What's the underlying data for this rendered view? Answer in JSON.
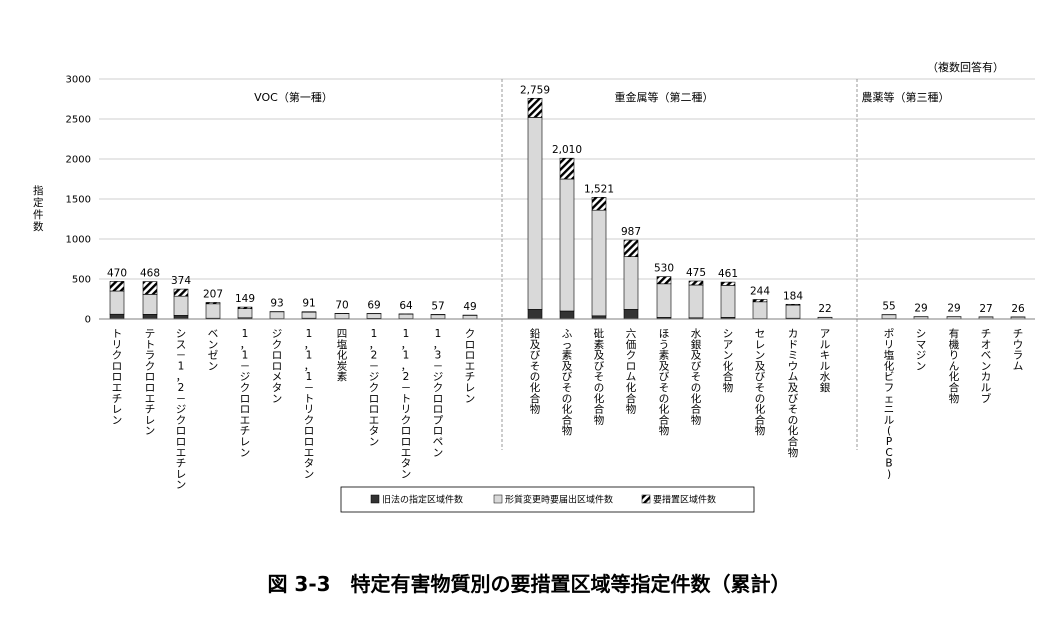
{
  "figure": {
    "caption": "図 3-3　特定有害物質別の要措置区域等指定件数（累計）",
    "note": "（複数回答有）"
  },
  "colors": {
    "old_law": "#333333",
    "change_notice": "#d9d9d9",
    "measures": "#000000",
    "grid": "#bfbfbf",
    "divider": "#808080"
  },
  "chart_data": {
    "type": "bar",
    "stacked": true,
    "ylabel": "指定件数",
    "ylim": [
      0,
      3000
    ],
    "yticks": [
      0,
      500,
      1000,
      1500,
      2000,
      2500,
      3000
    ],
    "grid": true,
    "legend_position": "bottom",
    "groups": [
      {
        "label": "VOC（第一種）",
        "start": 0,
        "end": 11
      },
      {
        "label": "重金属等（第二種）",
        "start": 12,
        "end": 20
      },
      {
        "label": "農薬等（第三種）",
        "start": 21,
        "end": 25
      }
    ],
    "categories": [
      "トリクロロエチレン",
      "テトラクロロエチレン",
      "シス－1，2－ジクロロエチレン",
      "ベンゼン",
      "1，1－ジクロロエチレン",
      "ジクロロメタン",
      "1，1，1－トリクロロエタン",
      "四塩化炭素",
      "1，2－ジクロロエタン",
      "1，1，2－トリクロロエタン",
      "1，3－ジクロロプロペン",
      "クロロエチレン",
      "鉛及びその化合物",
      "ふっ素及びその化合物",
      "砒素及びその化合物",
      "六価クロム化合物",
      "ほう素及びその化合物",
      "水銀及びその化合物",
      "シアン化合物",
      "セレン及びその化合物",
      "カドミウム及びその化合物",
      "アルキル水銀",
      "ポリ塩化ビフェニル(PCB)",
      "シマジン",
      "有機りん化合物",
      "チオベンカルブ",
      "チウラム"
    ],
    "totals": [
      "470",
      "468",
      "374",
      "207",
      "149",
      "93",
      "91",
      "70",
      "69",
      "64",
      "57",
      "49",
      "2,759",
      "2,010",
      "1,521",
      "987",
      "530",
      "475",
      "461",
      "244",
      "184",
      "22",
      "55",
      "29",
      "29",
      "27",
      "26"
    ],
    "series": [
      {
        "name": "旧法の指定区域件数",
        "pattern": "solid-dark",
        "values": [
          60,
          58,
          45,
          10,
          15,
          5,
          10,
          5,
          8,
          5,
          5,
          3,
          120,
          100,
          40,
          120,
          20,
          15,
          20,
          5,
          10,
          2,
          5,
          3,
          3,
          2,
          2
        ]
      },
      {
        "name": "形質変更時要届出区域件数",
        "pattern": "solid-light",
        "values": [
          290,
          250,
          240,
          180,
          115,
          85,
          75,
          63,
          58,
          56,
          48,
          43,
          2400,
          1650,
          1320,
          660,
          420,
          410,
          400,
          210,
          164,
          19,
          48,
          25,
          25,
          24,
          23
        ]
      },
      {
        "name": "要措置区域件数",
        "pattern": "hatched",
        "values": [
          120,
          160,
          89,
          17,
          19,
          3,
          6,
          2,
          3,
          3,
          4,
          3,
          239,
          260,
          161,
          207,
          90,
          50,
          41,
          29,
          10,
          1,
          2,
          1,
          1,
          1,
          1
        ]
      }
    ]
  }
}
